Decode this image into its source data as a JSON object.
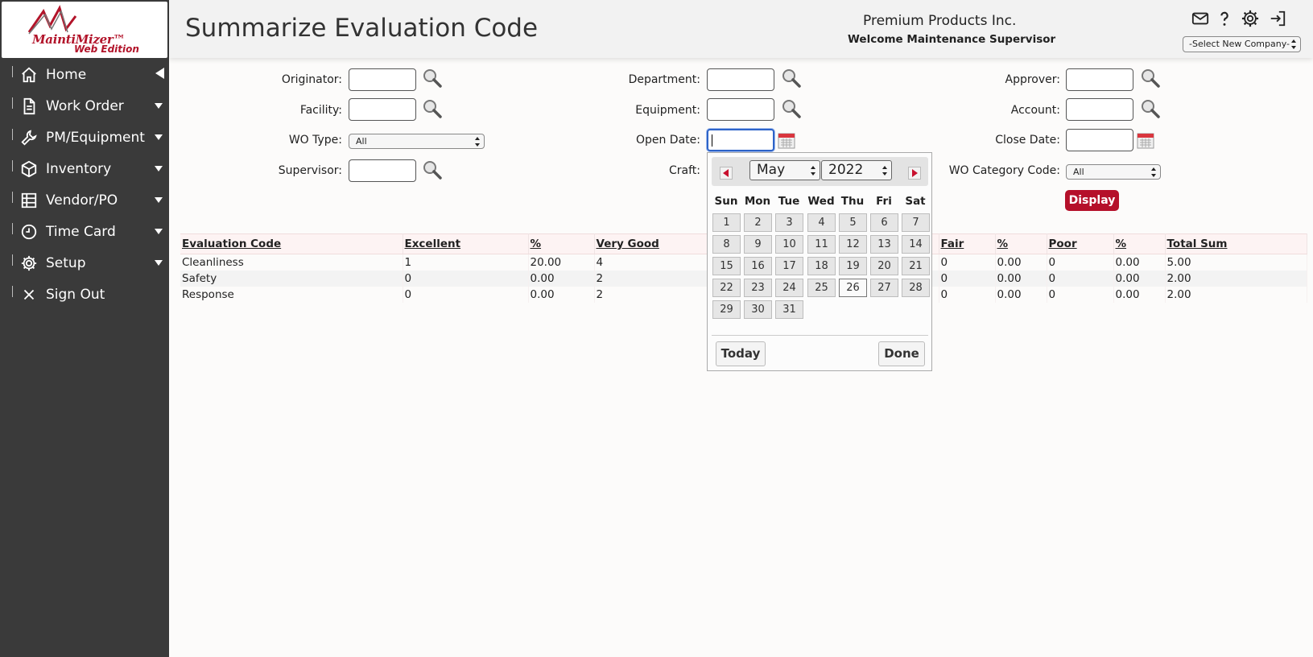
{
  "logo": {
    "line1": "MaintiMizer™",
    "line2": "Web Edition"
  },
  "sidebar": {
    "items": [
      {
        "label": "Home",
        "icon": "home-icon"
      },
      {
        "label": "Work Order",
        "icon": "document-icon"
      },
      {
        "label": "PM/Equipment",
        "icon": "wrench-icon"
      },
      {
        "label": "Inventory",
        "icon": "box-icon"
      },
      {
        "label": "Vendor/PO",
        "icon": "table-icon"
      },
      {
        "label": "Time Card",
        "icon": "clock-icon"
      },
      {
        "label": "Setup",
        "icon": "gear-icon"
      },
      {
        "label": "Sign Out",
        "icon": "close-icon"
      }
    ]
  },
  "header": {
    "title": "Summarize Evaluation Code",
    "company": "Premium Products Inc.",
    "welcome": "Welcome Maintenance Supervisor",
    "company_select": "-Select New Company-"
  },
  "form": {
    "originator": "Originator:",
    "facility": "Facility:",
    "wo_type": "WO Type:",
    "wo_type_value": "All",
    "supervisor": "Supervisor:",
    "department": "Department:",
    "equipment": "Equipment:",
    "open_date": "Open Date:",
    "craft": "Craft:",
    "approver": "Approver:",
    "account": "Account:",
    "close_date": "Close Date:",
    "wo_category": "WO Category Code:",
    "wo_category_value": "All",
    "display": "Display"
  },
  "table": {
    "headers": [
      "Evaluation Code",
      "Excellent",
      "%",
      "Very Good",
      "Fair",
      "%",
      "Poor",
      "%",
      "Total Sum"
    ],
    "rows": [
      [
        "Cleanliness",
        "1",
        "20.00",
        "4",
        "0",
        "0.00",
        "0",
        "0.00",
        "5.00"
      ],
      [
        "Safety",
        "0",
        "0.00",
        "2",
        "0",
        "0.00",
        "0",
        "0.00",
        "2.00"
      ],
      [
        "Response",
        "0",
        "0.00",
        "2",
        "0",
        "0.00",
        "0",
        "0.00",
        "2.00"
      ]
    ]
  },
  "calendar": {
    "month": "May",
    "year": "2022",
    "weekdays": [
      "Sun",
      "Mon",
      "Tue",
      "Wed",
      "Thu",
      "Fri",
      "Sat"
    ],
    "days": [
      "1",
      "2",
      "3",
      "4",
      "5",
      "6",
      "7",
      "8",
      "9",
      "10",
      "11",
      "12",
      "13",
      "14",
      "15",
      "16",
      "17",
      "18",
      "19",
      "20",
      "21",
      "22",
      "23",
      "24",
      "25",
      "26",
      "27",
      "28",
      "29",
      "30",
      "31"
    ],
    "first_weekday": 0,
    "today": "26",
    "today_button": "Today",
    "done_button": "Done"
  },
  "colors": {
    "accent": "#b5102a",
    "sidebar": "#3a3a3a",
    "focus": "#2d63c8"
  }
}
